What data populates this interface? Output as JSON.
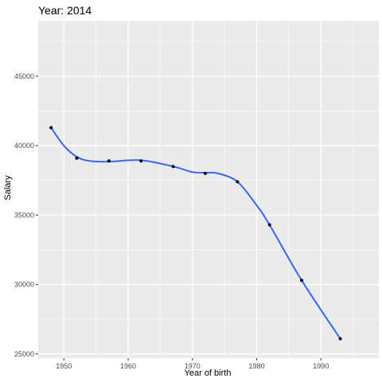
{
  "chart_data": {
    "type": "scatter",
    "title": "Year: 2014",
    "xlabel": "Year of birth",
    "ylabel": "Salary",
    "xlim": [
      1946,
      1999
    ],
    "ylim": [
      24700,
      49000
    ],
    "x_ticks": [
      1950,
      1960,
      1970,
      1980,
      1990
    ],
    "y_ticks": [
      25000,
      30000,
      35000,
      40000,
      45000
    ],
    "x_tick_labels": [
      "1950",
      "1960",
      "1970",
      "1980",
      "1990"
    ],
    "y_tick_labels": [
      "25000",
      "30000",
      "35000",
      "40000",
      "45000"
    ],
    "grid": true,
    "legend": "none",
    "colors": {
      "panel": "#ebebeb",
      "grid": "#ffffff",
      "points": "#000000",
      "smooth_line": "#3366ff"
    },
    "series": [
      {
        "type": "scatter",
        "x": [
          1948,
          1952,
          1957,
          1962,
          1967,
          1972,
          1977,
          1982,
          1987,
          1993
        ],
        "y": [
          41300,
          39100,
          38900,
          38900,
          38500,
          38000,
          37400,
          34300,
          30300,
          26100
        ]
      },
      {
        "type": "smooth-line",
        "x": [
          1948,
          1950,
          1952,
          1954,
          1957,
          1962,
          1967,
          1970,
          1972,
          1974,
          1977,
          1980,
          1982,
          1987,
          1993
        ],
        "y": [
          41300,
          40000,
          39200,
          38900,
          38850,
          38950,
          38500,
          38100,
          38050,
          38000,
          37400,
          35700,
          34300,
          30300,
          26100
        ]
      }
    ]
  }
}
